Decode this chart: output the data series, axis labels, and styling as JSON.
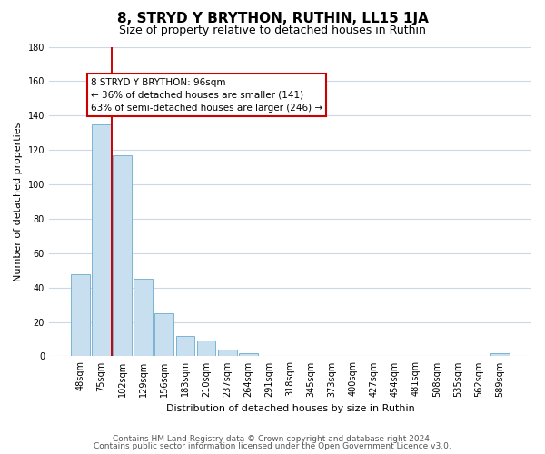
{
  "title": "8, STRYD Y BRYTHON, RUTHIN, LL15 1JA",
  "subtitle": "Size of property relative to detached houses in Ruthin",
  "xlabel": "Distribution of detached houses by size in Ruthin",
  "ylabel": "Number of detached properties",
  "bar_labels": [
    "48sqm",
    "75sqm",
    "102sqm",
    "129sqm",
    "156sqm",
    "183sqm",
    "210sqm",
    "237sqm",
    "264sqm",
    "291sqm",
    "318sqm",
    "345sqm",
    "373sqm",
    "400sqm",
    "427sqm",
    "454sqm",
    "481sqm",
    "508sqm",
    "535sqm",
    "562sqm",
    "589sqm"
  ],
  "bar_values": [
    48,
    135,
    117,
    45,
    25,
    12,
    9,
    4,
    2,
    0,
    0,
    0,
    0,
    0,
    0,
    0,
    0,
    0,
    0,
    0,
    2
  ],
  "bar_color": "#c8dff0",
  "bar_edge_color": "#7ab4d4",
  "vline_color": "#cc0000",
  "vline_pos": 1.5,
  "ylim": [
    0,
    180
  ],
  "yticks": [
    0,
    20,
    40,
    60,
    80,
    100,
    120,
    140,
    160,
    180
  ],
  "ann_title": "8 STRYD Y BRYTHON: 96sqm",
  "ann_line1": "← 36% of detached houses are smaller (141)",
  "ann_line2": "63% of semi-detached houses are larger (246) →",
  "ann_box_facecolor": "#ffffff",
  "ann_box_edgecolor": "#cc0000",
  "footer1": "Contains HM Land Registry data © Crown copyright and database right 2024.",
  "footer2": "Contains public sector information licensed under the Open Government Licence v3.0.",
  "bg_color": "#ffffff",
  "grid_color": "#ccd8e8",
  "title_fontsize": 11,
  "subtitle_fontsize": 9,
  "axis_label_fontsize": 8,
  "tick_fontsize": 7,
  "ann_fontsize": 7.5,
  "footer_fontsize": 6.5
}
